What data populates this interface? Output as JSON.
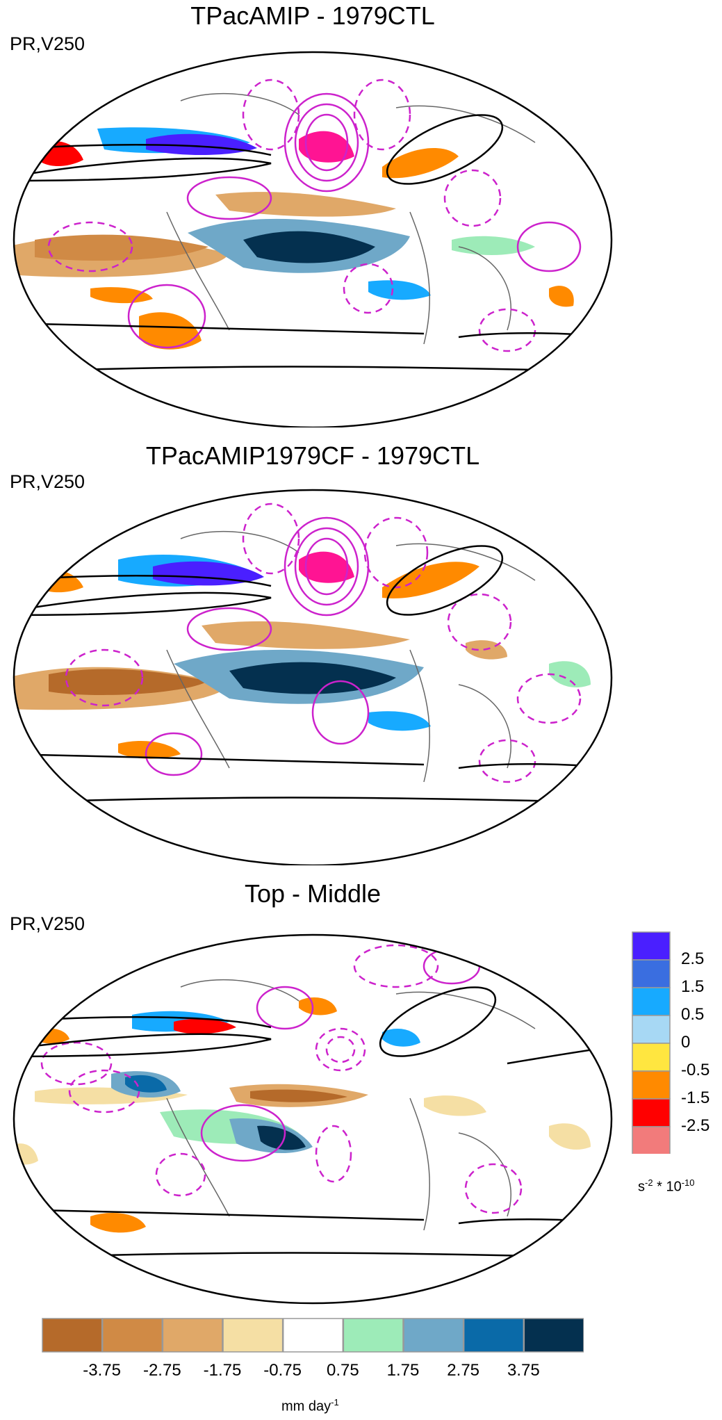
{
  "panels": [
    {
      "title": "TPacAMIP - 1979CTL",
      "label": "PR,V250"
    },
    {
      "title": "TPacAMIP1979CF - 1979CTL",
      "label": "PR,V250"
    },
    {
      "title": "Top - Middle",
      "label": "PR,V250"
    }
  ],
  "right_colorbar": {
    "colors": [
      "#4a1fff",
      "#3a6ee0",
      "#17aaff",
      "#a7d8f4",
      "#ffe640",
      "#ff8a00",
      "#ff0000",
      "#f27b7b"
    ],
    "labels": [
      "2.5",
      "1.5",
      "0.5",
      "0",
      "-0.5",
      "-1.5",
      "-2.5"
    ],
    "units": "s-2 * 10-10"
  },
  "bottom_colorbar": {
    "colors": [
      "#b56a2a",
      "#d08a45",
      "#e0a868",
      "#f5dfa4",
      "#ffffff",
      "#9debb8",
      "#6fa8c8",
      "#0a6aa8",
      "#04304f"
    ],
    "labels": [
      "-3.75",
      "-2.75",
      "-1.75",
      "-0.75",
      "0.75",
      "1.75",
      "2.75",
      "3.75"
    ],
    "units": "mm day-1"
  },
  "colors": {
    "contour": "#cc22cc",
    "jet": "#000000",
    "land": "#666666"
  }
}
